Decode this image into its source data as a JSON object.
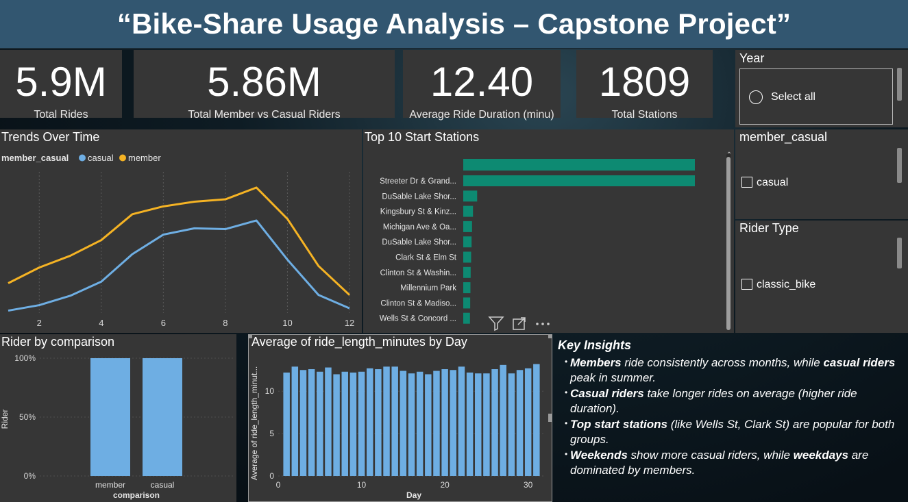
{
  "header": {
    "title": "“Bike-Share Usage Analysis – Capstone Project”"
  },
  "kpis": [
    {
      "value": "5.9M",
      "label": "Total Rides"
    },
    {
      "value": "5.86M",
      "label": "Total Member vs Casual Riders"
    },
    {
      "value": "12.40",
      "label": "Average Ride Duration (minu)"
    },
    {
      "value": "1809",
      "label": "Total Stations"
    }
  ],
  "slicers": {
    "year": {
      "title": "Year",
      "option": "Select all"
    },
    "member_casual": {
      "title": "member_casual",
      "option": "casual"
    },
    "rider_type": {
      "title": "Rider Type",
      "option": "classic_bike"
    }
  },
  "trends": {
    "title": "Trends Over Time",
    "legend_title": "member_casual",
    "chart_data": {
      "type": "line",
      "x": [
        1,
        2,
        3,
        4,
        5,
        6,
        7,
        8,
        9,
        10,
        11,
        12
      ],
      "x_ticks": [
        "2",
        "4",
        "6",
        "8",
        "10",
        "12"
      ],
      "series": [
        {
          "name": "casual",
          "color": "#6eaee3",
          "values": [
            0.3,
            1.0,
            2.2,
            4.0,
            7.5,
            10.0,
            10.8,
            10.7,
            11.8,
            6.8,
            2.3,
            0.6
          ]
        },
        {
          "name": "member",
          "color": "#f5b324",
          "values": [
            3.8,
            5.8,
            7.3,
            9.3,
            12.6,
            13.6,
            14.2,
            14.5,
            16.0,
            12.0,
            6.0,
            2.3
          ]
        }
      ],
      "ylim": [
        0,
        18
      ],
      "grid": true,
      "legend": "top-left"
    }
  },
  "top_stations": {
    "title": "Top 10 Start Stations",
    "chart_data": {
      "type": "bar",
      "orientation": "horizontal",
      "color": "#0d8a72",
      "categories": [
        "Streeter Dr & Grand...",
        "DuSable Lake Shor...",
        "Kingsbury St & Kinz...",
        "Michigan Ave & Oa...",
        "DuSable Lake Shor...",
        "Clark St & Elm St",
        "Clinton St & Washin...",
        "Millennium Park",
        "Clinton St & Madiso...",
        "Wells St & Concord ..."
      ],
      "values": [
        100,
        6,
        4.2,
        3.8,
        3.6,
        3.4,
        3.2,
        3.1,
        3.0,
        2.9
      ],
      "leading_bar_value": 100
    }
  },
  "rider_comparison": {
    "title": "Rider by comparison",
    "chart_data": {
      "type": "bar",
      "color": "#6eaee3",
      "categories": [
        "member",
        "casual"
      ],
      "values": [
        100,
        100
      ],
      "y_ticks": [
        "100%",
        "50%",
        "0%"
      ],
      "xlabel": "comparison",
      "ylabel": "Rider",
      "ylim": [
        0,
        100
      ]
    }
  },
  "avg_by_day": {
    "title": "Average of ride_length_minutes by Day",
    "chart_data": {
      "type": "bar",
      "color": "#6eaee3",
      "x": [
        1,
        2,
        3,
        4,
        5,
        6,
        7,
        8,
        9,
        10,
        11,
        12,
        13,
        14,
        15,
        16,
        17,
        18,
        19,
        20,
        21,
        22,
        23,
        24,
        25,
        26,
        27,
        28,
        29,
        30,
        31
      ],
      "values": [
        12.2,
        12.9,
        12.5,
        12.6,
        12.3,
        12.8,
        12.0,
        12.3,
        12.2,
        12.3,
        12.7,
        12.6,
        12.9,
        12.9,
        12.4,
        12.1,
        12.3,
        12.0,
        12.4,
        12.6,
        12.5,
        12.9,
        12.2,
        12.1,
        12.1,
        12.6,
        13.1,
        12.1,
        12.5,
        12.7,
        13.2
      ],
      "x_ticks": [
        "0",
        "10",
        "20",
        "30"
      ],
      "y_ticks": [
        "10",
        "5",
        "0"
      ],
      "xlabel": "Day",
      "ylabel": "Average of ride_length_minut...",
      "ylim": [
        0,
        14.3
      ],
      "xlim": [
        0,
        32
      ]
    }
  },
  "insights": {
    "title": "Key Insights",
    "items": [
      {
        "parts": [
          [
            "Members",
            true
          ],
          [
            " ride consistently across months, while ",
            false
          ],
          [
            "casual riders",
            true
          ],
          [
            " peak in summer.",
            false
          ]
        ]
      },
      {
        "parts": [
          [
            "Casual riders",
            true
          ],
          [
            " take longer rides on average (higher ride duration).",
            false
          ]
        ]
      },
      {
        "parts": [
          [
            "Top start stations",
            true
          ],
          [
            " (like Wells St, Clark St) are popular for both groups.",
            false
          ]
        ]
      },
      {
        "parts": [
          [
            "Weekends",
            true
          ],
          [
            " show more casual riders, while ",
            false
          ],
          [
            "weekdays",
            true
          ],
          [
            " are dominated by members.",
            false
          ]
        ]
      }
    ]
  },
  "icons": {
    "filter": "filter-icon",
    "focus": "focus-mode-icon",
    "more": "more-options-icon"
  }
}
